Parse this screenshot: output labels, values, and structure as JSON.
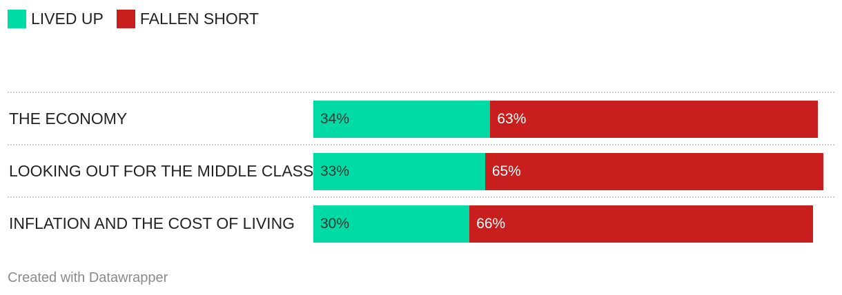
{
  "legend": {
    "items": [
      {
        "label": "LIVED UP",
        "color": "#00dba5"
      },
      {
        "label": "FALLEN SHORT",
        "color": "#c81e1e"
      }
    ]
  },
  "chart_data": {
    "type": "bar",
    "orientation": "horizontal",
    "stacked": true,
    "xlim": [
      0,
      100
    ],
    "categories": [
      "THE ECONOMY",
      "LOOKING OUT FOR THE MIDDLE CLASS",
      "INFLATION AND THE COST OF LIVING"
    ],
    "series": [
      {
        "name": "LIVED UP",
        "color": "#00dba5",
        "values": [
          34,
          33,
          30
        ],
        "labels": [
          "34%",
          "33%",
          "30%"
        ]
      },
      {
        "name": "FALLEN SHORT",
        "color": "#c81e1e",
        "values": [
          63,
          65,
          66
        ],
        "labels": [
          "63%",
          "65%",
          "66%"
        ]
      }
    ],
    "legend_position": "top-left",
    "grid": false
  },
  "footer": {
    "credit": "Created with Datawrapper"
  }
}
